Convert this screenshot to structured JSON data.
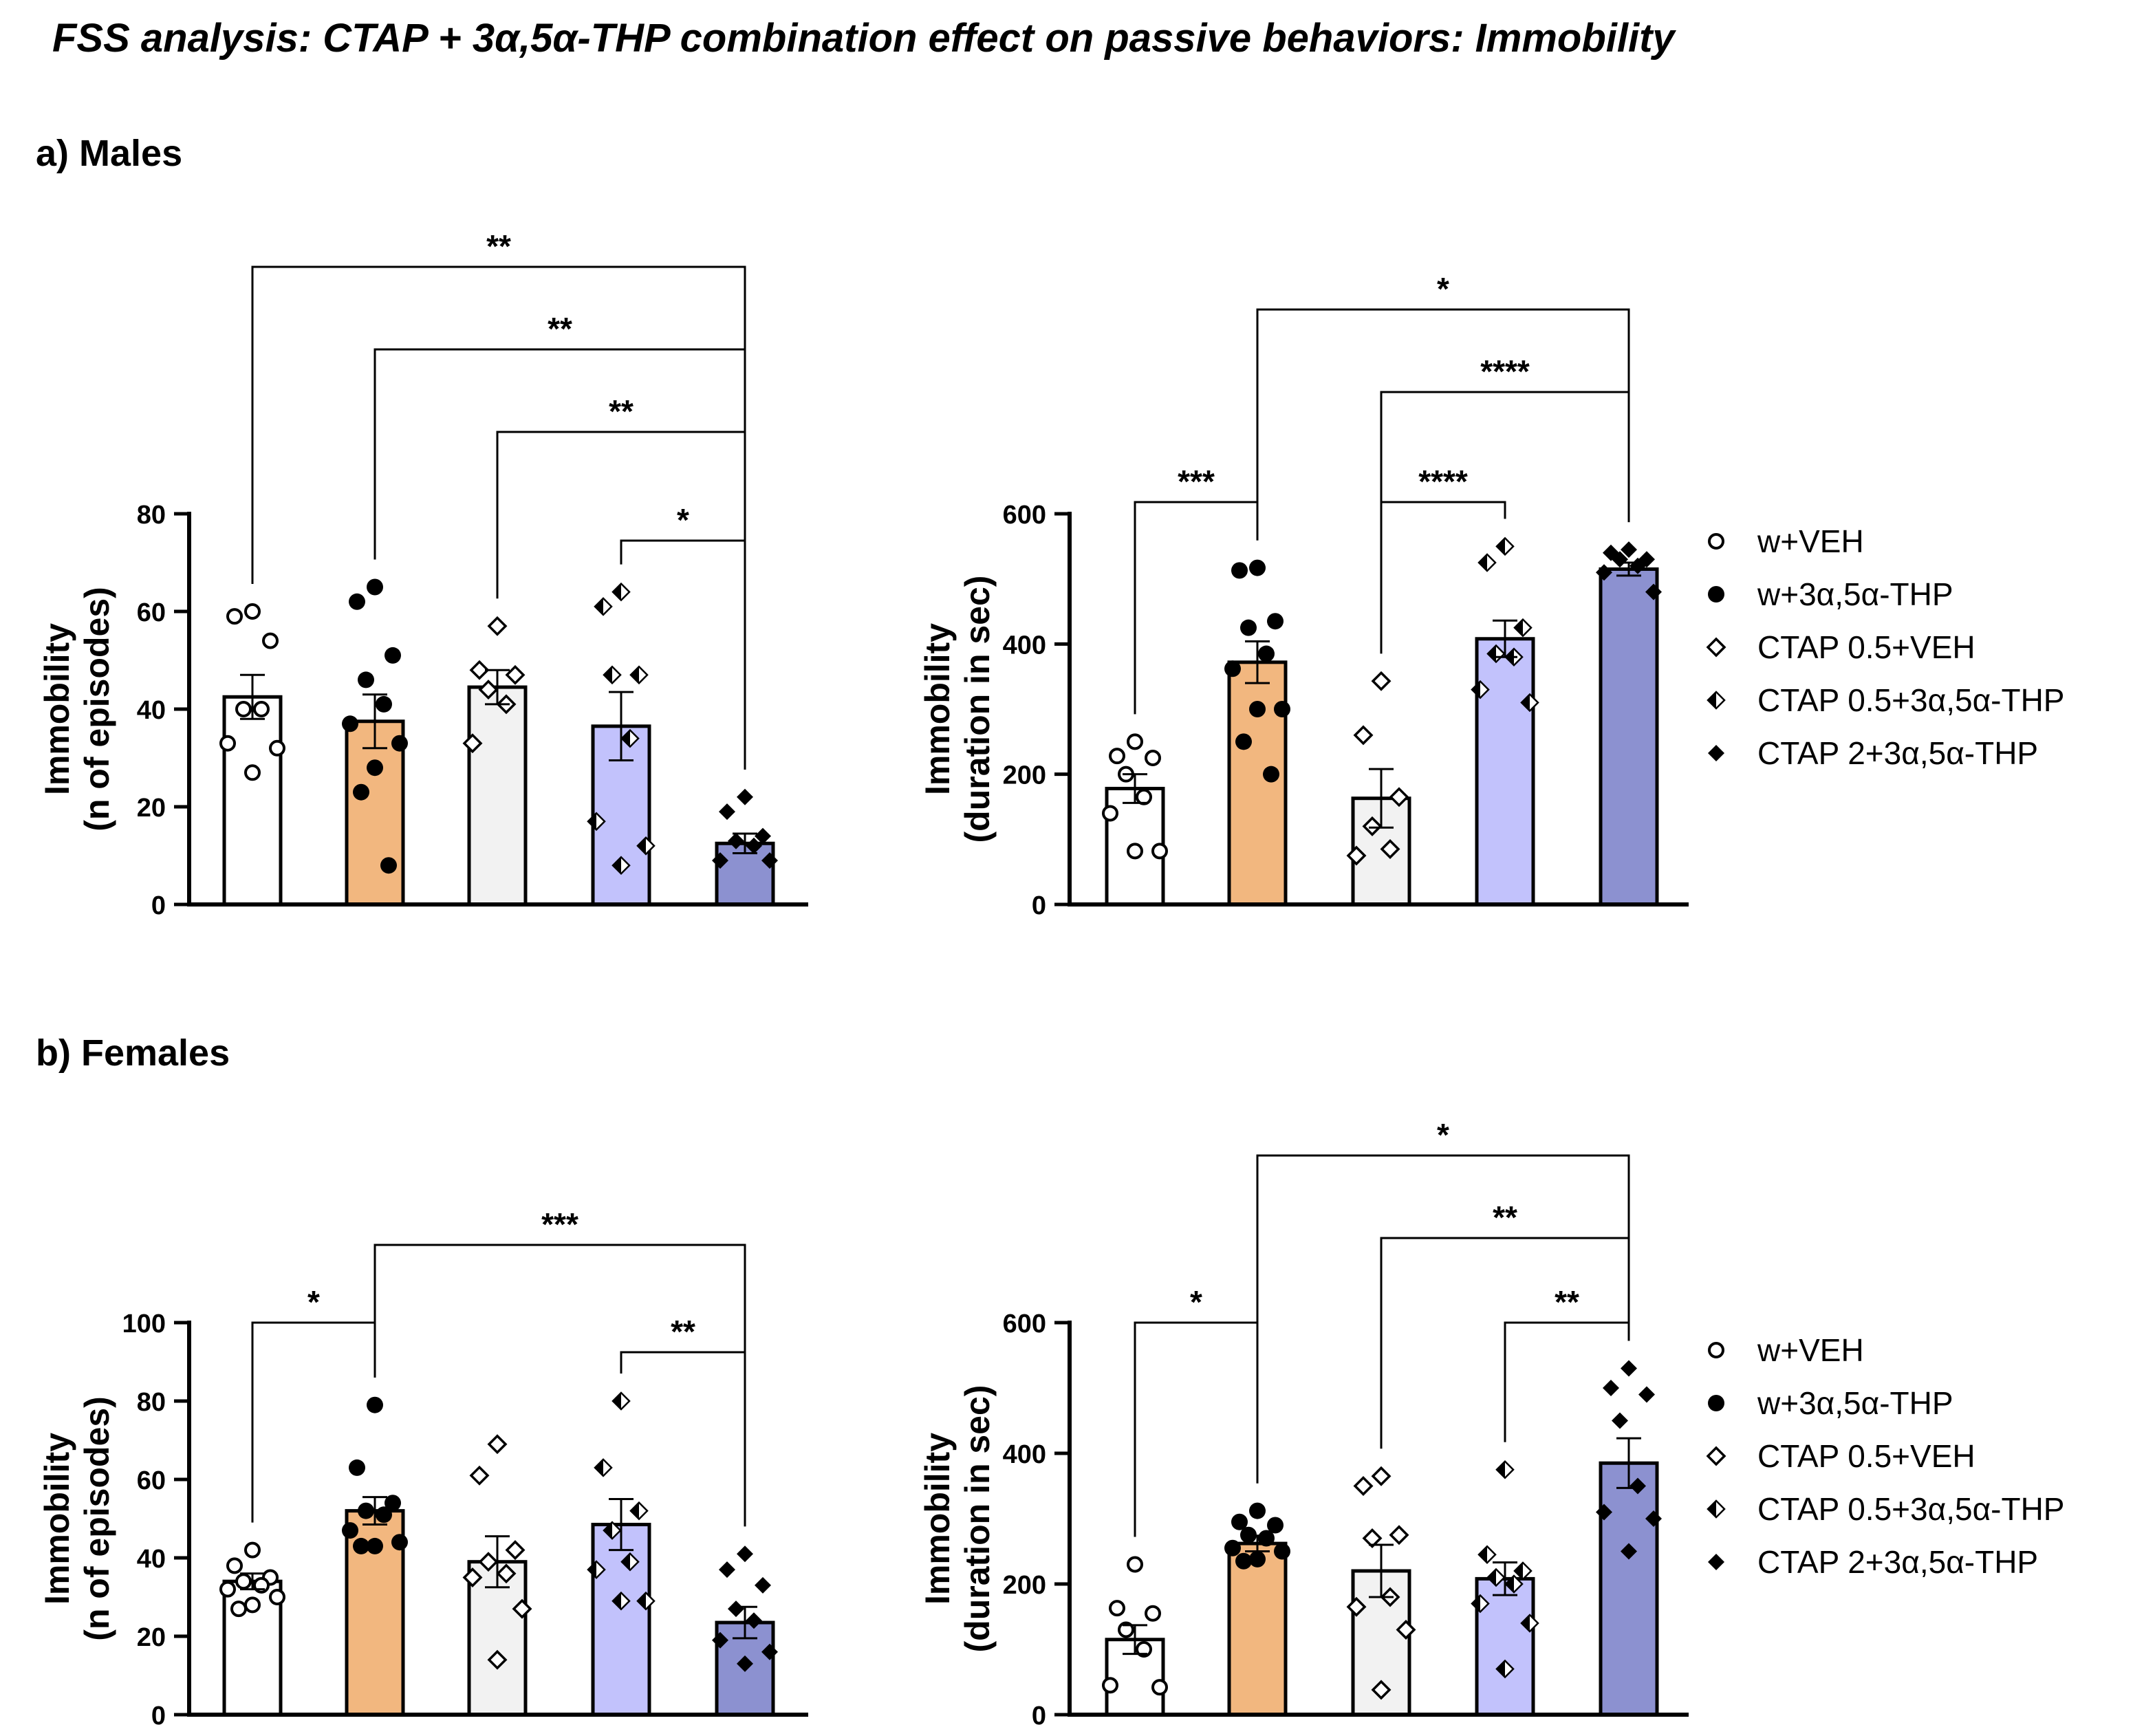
{
  "figure": {
    "title": "FSS analysis: CTAP + 3α,5α-THP combination effect on passive behaviors: Immobility",
    "sections": [
      {
        "label": "a) Males"
      },
      {
        "label": "b) Females"
      }
    ]
  },
  "colors": {
    "bar_fills": [
      "#ffffff",
      "#f2b77f",
      "#f2f2f2",
      "#c2c2fc",
      "#8c91d0"
    ],
    "axis": "#000000"
  },
  "legends": [
    {
      "entries": [
        {
          "marker": "open-circle",
          "label": "w+VEH"
        },
        {
          "marker": "filled-circle",
          "label": "w+3α,5α-THP"
        },
        {
          "marker": "open-diamond",
          "label": "CTAP 0.5+VEH"
        },
        {
          "marker": "half-diamond",
          "label": "CTAP 0.5+3α,5α-THP"
        },
        {
          "marker": "filled-diamond",
          "label": "CTAP 2+3α,5α-THP"
        }
      ]
    },
    {
      "entries": [
        {
          "marker": "open-circle",
          "label": "w+VEH"
        },
        {
          "marker": "filled-circle",
          "label": "w+3α,5α-THP"
        },
        {
          "marker": "open-diamond",
          "label": "CTAP 0.5+VEH"
        },
        {
          "marker": "half-diamond",
          "label": "CTAP 0.5+3α,5α-THP"
        },
        {
          "marker": "filled-diamond",
          "label": "CTAP 2+3α,5α-THP"
        }
      ]
    }
  ],
  "chart_data": [
    {
      "id": "males-episodes",
      "type": "bar",
      "title": "",
      "ylabel": [
        "Immobility",
        "(n of episodes)"
      ],
      "ylim": [
        0,
        80
      ],
      "yticks": [
        "0",
        "20",
        "40",
        "60",
        "80"
      ],
      "ytick_values": [
        0,
        20,
        40,
        60,
        80
      ],
      "categories": [
        "w+VEH",
        "w+3α,5α-THP",
        "CTAP 0.5+VEH",
        "CTAP 0.5+3α,5α-THP",
        "CTAP 2+3α,5α-THP"
      ],
      "values": [
        42.5,
        37.5,
        44.5,
        36.5,
        12.5
      ],
      "sem": [
        4.5,
        5.5,
        3.5,
        7.0,
        2.0
      ],
      "points": [
        [
          60,
          59,
          54,
          40,
          40,
          33,
          32,
          27
        ],
        [
          65,
          62,
          51,
          46,
          41,
          37,
          33,
          28,
          23,
          8
        ],
        [
          57,
          48,
          47,
          44,
          41,
          33
        ],
        [
          64,
          61,
          47,
          47,
          34,
          17,
          12,
          8
        ],
        [
          22,
          19,
          14,
          13,
          12,
          9,
          9
        ]
      ],
      "significance": [
        {
          "from": 0,
          "to": 4,
          "label": "**"
        },
        {
          "from": 1,
          "to": 4,
          "label": "**"
        },
        {
          "from": 2,
          "to": 4,
          "label": "**"
        },
        {
          "from": 3,
          "to": 4,
          "label": "*"
        }
      ]
    },
    {
      "id": "males-duration",
      "type": "bar",
      "title": "",
      "ylabel": [
        "Immobility",
        "(duration in sec)"
      ],
      "ylim": [
        0,
        600
      ],
      "yticks": [
        "0",
        "200",
        "400",
        "600"
      ],
      "ytick_values": [
        0,
        200,
        400,
        600
      ],
      "categories": [
        "w+VEH",
        "w+3α,5α-THP",
        "CTAP 0.5+VEH",
        "CTAP 0.5+3α,5α-THP",
        "CTAP 2+3α,5α-THP"
      ],
      "values": [
        178,
        372,
        163,
        408,
        515
      ],
      "sem": [
        22,
        32,
        45,
        28,
        10
      ],
      "points": [
        [
          250,
          228,
          225,
          200,
          165,
          140,
          82,
          82
        ],
        [
          517,
          513,
          435,
          425,
          385,
          362,
          300,
          300,
          250,
          200
        ],
        [
          343,
          260,
          165,
          120,
          85,
          75
        ],
        [
          550,
          525,
          425,
          385,
          380,
          330,
          310
        ],
        [
          545,
          540,
          530,
          530,
          520,
          510,
          480
        ]
      ],
      "significance": [
        {
          "from": 1,
          "to": 4,
          "label": "*"
        },
        {
          "from": 2,
          "to": 4,
          "label": "****"
        },
        {
          "from": 0,
          "to": 1,
          "label": "***"
        },
        {
          "from": 2,
          "to": 3,
          "label": "****"
        }
      ]
    },
    {
      "id": "females-episodes",
      "type": "bar",
      "title": "",
      "ylabel": [
        "Immobility",
        "(n of episodes)"
      ],
      "ylim": [
        0,
        100
      ],
      "yticks": [
        "0",
        "20",
        "40",
        "60",
        "80",
        "100"
      ],
      "ytick_values": [
        0,
        20,
        40,
        60,
        80,
        100
      ],
      "categories": [
        "w+VEH",
        "w+3α,5α-THP",
        "CTAP 0.5+VEH",
        "CTAP 0.5+3α,5α-THP",
        "CTAP 2+3α,5α-THP"
      ],
      "values": [
        34,
        52,
        39,
        48.5,
        23.5
      ],
      "sem": [
        2,
        3.5,
        6.5,
        6.5,
        4
      ],
      "points": [
        [
          42,
          38,
          35,
          34,
          33,
          32,
          30,
          28,
          27
        ],
        [
          79,
          63,
          54,
          52,
          51,
          47,
          44,
          43,
          43
        ],
        [
          69,
          61,
          42,
          39,
          36,
          35,
          27,
          14
        ],
        [
          80,
          63,
          52,
          47,
          39,
          37,
          29,
          29
        ],
        [
          41,
          37,
          33,
          27,
          24,
          19,
          16,
          13
        ]
      ],
      "significance": [
        {
          "from": 1,
          "to": 4,
          "label": "***"
        },
        {
          "from": 0,
          "to": 1,
          "label": "*"
        },
        {
          "from": 3,
          "to": 4,
          "label": "**"
        }
      ]
    },
    {
      "id": "females-duration",
      "type": "bar",
      "title": "",
      "ylabel": [
        "Immobility",
        "(duration in sec)"
      ],
      "ylim": [
        0,
        600
      ],
      "yticks": [
        "0",
        "200",
        "400",
        "600"
      ],
      "ytick_values": [
        0,
        200,
        400,
        600
      ],
      "categories": [
        "w+VEH",
        "w+3α,5α-THP",
        "CTAP 0.5+VEH",
        "CTAP 0.5+3α,5α-THP",
        "CTAP 2+3α,5α-THP"
      ],
      "values": [
        115,
        262,
        220,
        208,
        385
      ],
      "sem": [
        22,
        12,
        40,
        25,
        38
      ],
      "points": [
        [
          230,
          163,
          155,
          130,
          100,
          45,
          42
        ],
        [
          312,
          295,
          290,
          275,
          270,
          255,
          250,
          238,
          235
        ],
        [
          365,
          350,
          275,
          270,
          180,
          165,
          130,
          38
        ],
        [
          375,
          245,
          220,
          210,
          200,
          170,
          140,
          70
        ],
        [
          530,
          500,
          490,
          450,
          350,
          310,
          300,
          250
        ]
      ],
      "significance": [
        {
          "from": 1,
          "to": 4,
          "label": "*"
        },
        {
          "from": 2,
          "to": 4,
          "label": "**"
        },
        {
          "from": 0,
          "to": 1,
          "label": "*"
        },
        {
          "from": 3,
          "to": 4,
          "label": "**"
        }
      ]
    }
  ]
}
